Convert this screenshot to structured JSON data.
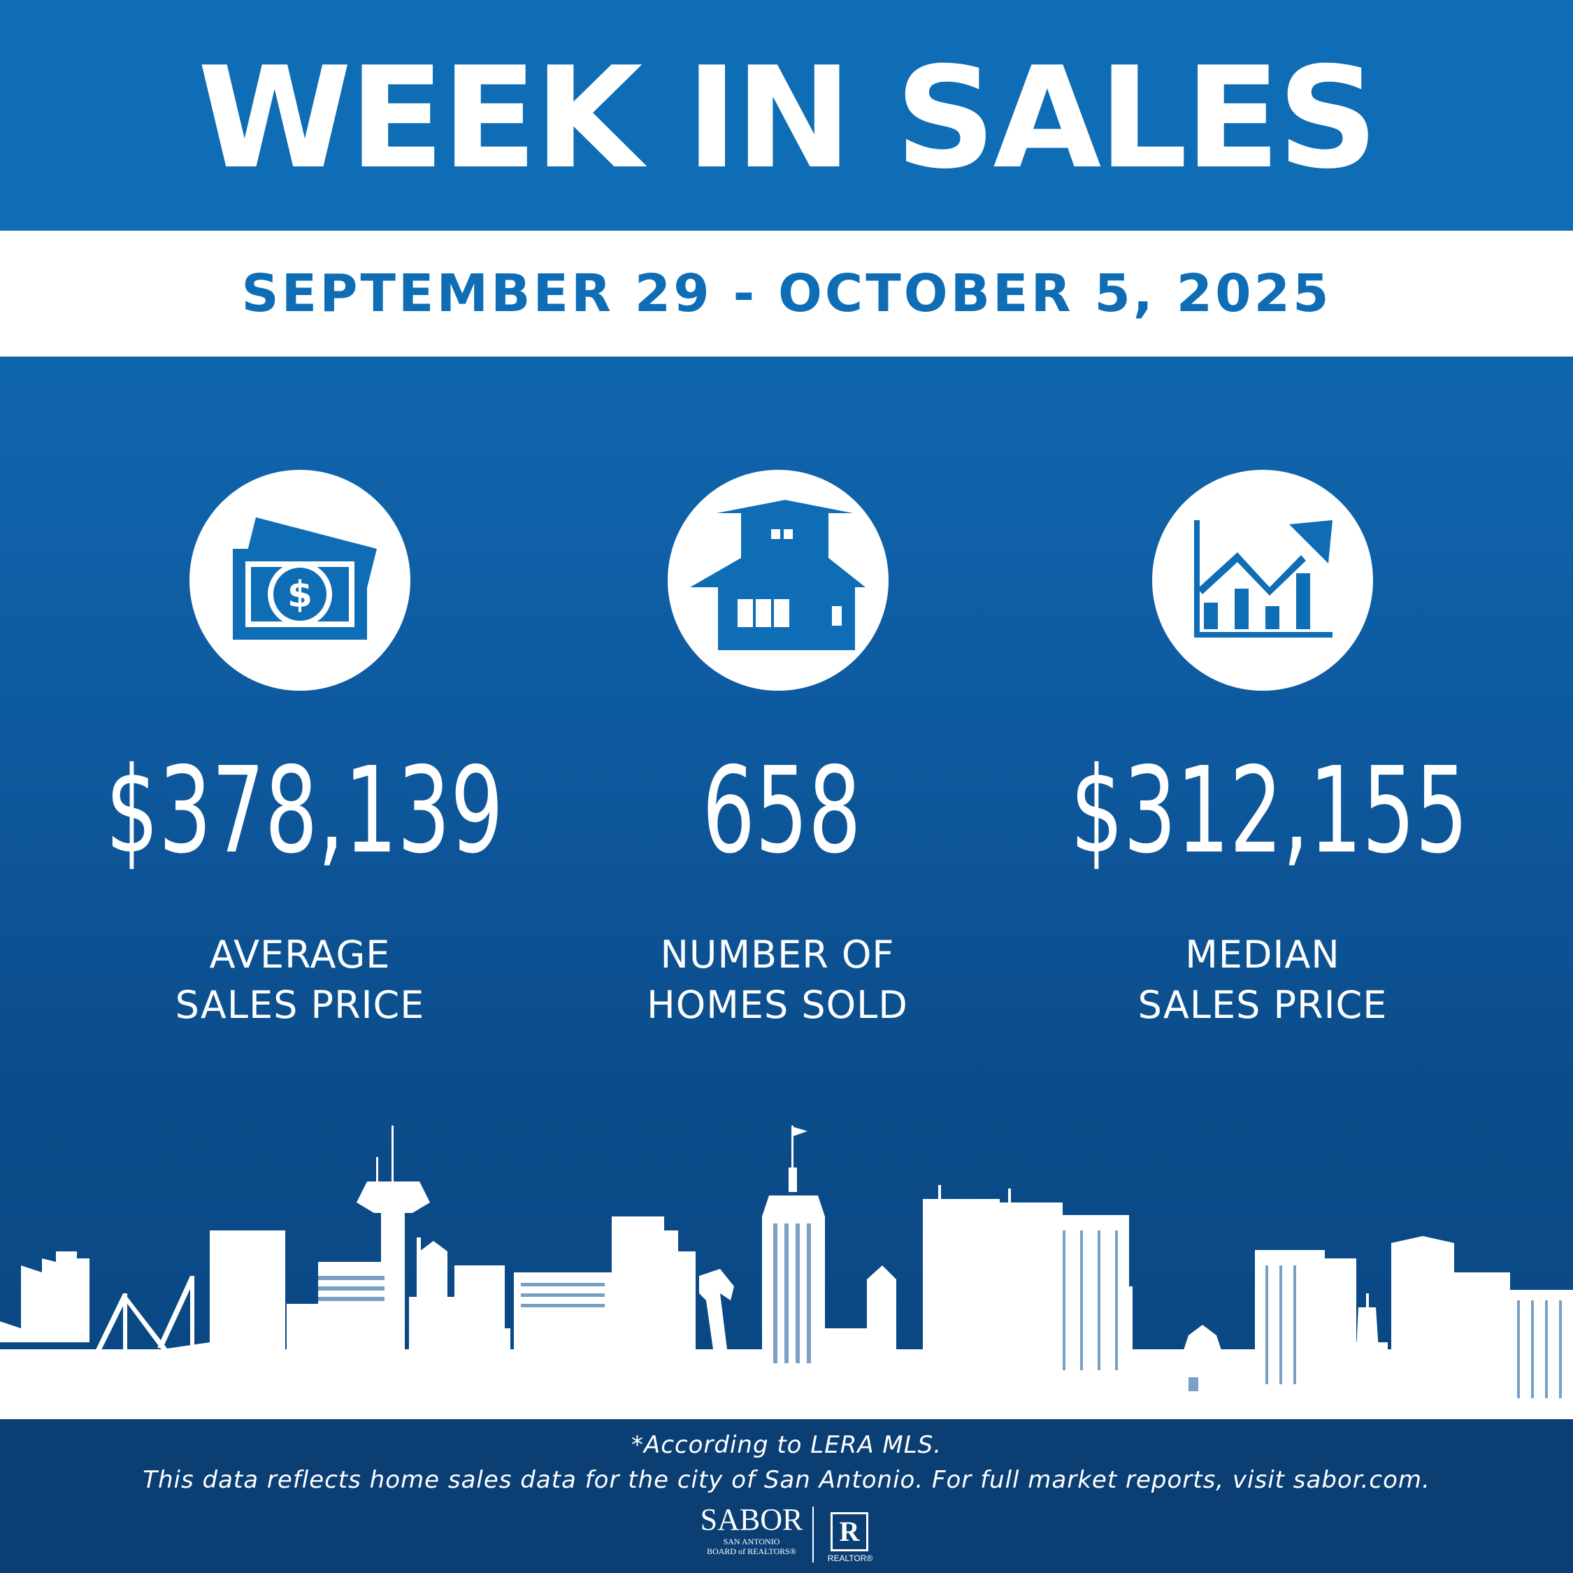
{
  "header": {
    "title": "WEEK IN SALES",
    "date_range": "SEPTEMBER 29 - OCTOBER 5, 2025"
  },
  "stats": [
    {
      "icon": "money-icon",
      "value": "$378,139",
      "label_line1": "AVERAGE",
      "label_line2": "SALES PRICE"
    },
    {
      "icon": "house-icon",
      "value": "658",
      "label_line1": "NUMBER OF",
      "label_line2": "HOMES SOLD"
    },
    {
      "icon": "growth-chart-icon",
      "value": "$312,155",
      "label_line1": "MEDIAN",
      "label_line2": "SALES PRICE"
    }
  ],
  "footer": {
    "note1": "*According to LERA MLS.",
    "note2": "This data reflects home sales data for the city of San Antonio. For full market reports, visit sabor.com.",
    "logo_text": "SABOR",
    "logo_sub1": "SAN ANTONIO",
    "logo_sub2": "BOARD of REALTORS®",
    "realtor_mark": "R",
    "realtor_label": "REALTOR®"
  },
  "colors": {
    "primary_blue": "#0f6db5",
    "dark_blue": "#0b3f74",
    "white": "#ffffff"
  }
}
